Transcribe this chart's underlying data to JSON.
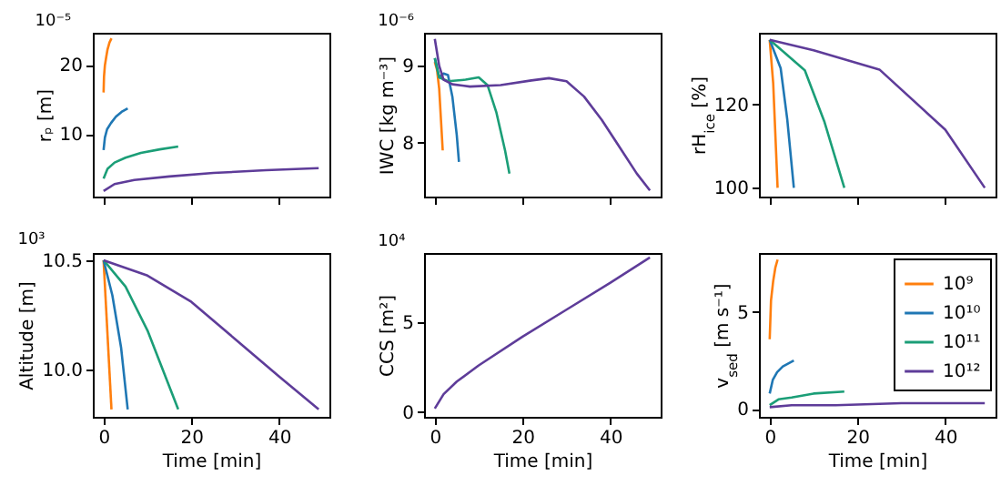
{
  "chart_data": [
    {
      "type": "line",
      "title": "10⁻⁵",
      "ylabel": "rₚ [m]",
      "xlim": [
        -2.45,
        51.45
      ],
      "xticks": [
        0,
        20,
        40
      ],
      "ylim": [
        1,
        24.6
      ],
      "yticks": [
        10,
        20
      ],
      "tick_labels": "y",
      "series": [
        {
          "color": "#ff7f0e",
          "x": [
            0,
            0.1,
            0.3,
            0.6,
            0.9,
            1.35,
            1.8
          ],
          "values": [
            16,
            18.3,
            19.9,
            21.1,
            22.2,
            23.2,
            23.8
          ]
        },
        {
          "color": "#1f77b4",
          "x": [
            0,
            0.3,
            0.8,
            1.7,
            2.8,
            4.1,
            5.5
          ],
          "values": [
            7.7,
            9.5,
            10.7,
            11.6,
            12.5,
            13.2,
            13.7
          ]
        },
        {
          "color": "#1b9e77",
          "x": [
            0,
            0.9,
            2.5,
            5,
            8.5,
            12.8,
            17
          ],
          "values": [
            3.6,
            5.0,
            5.9,
            6.6,
            7.3,
            7.8,
            8.2
          ]
        },
        {
          "color": "#5e3c99",
          "x": [
            0,
            2.5,
            7,
            15,
            25,
            37,
            49
          ],
          "values": [
            1.8,
            2.8,
            3.4,
            3.9,
            4.4,
            4.8,
            5.1
          ]
        }
      ]
    },
    {
      "type": "line",
      "title": "10⁻⁶",
      "ylabel": "IWC [kg m⁻³]",
      "xlim": [
        -2.45,
        51.45
      ],
      "xticks": [
        0,
        20,
        40
      ],
      "ylim": [
        7.3,
        9.43
      ],
      "yticks": [
        8,
        9
      ],
      "tick_labels": "y",
      "series": [
        {
          "color": "#ff7f0e",
          "x": [
            0,
            0.5,
            1,
            1.4,
            1.8
          ],
          "values": [
            9.05,
            8.95,
            8.7,
            8.3,
            7.9
          ]
        },
        {
          "color": "#1f77b4",
          "x": [
            0,
            1,
            2,
            3,
            4,
            5,
            5.5
          ],
          "values": [
            9.1,
            8.85,
            8.9,
            8.88,
            8.6,
            8.1,
            7.75
          ]
        },
        {
          "color": "#1b9e77",
          "x": [
            0,
            1,
            3,
            7,
            10,
            12,
            14,
            16,
            17
          ],
          "values": [
            9.1,
            8.85,
            8.8,
            8.82,
            8.85,
            8.75,
            8.4,
            7.9,
            7.6
          ]
        },
        {
          "color": "#5e3c99",
          "x": [
            0,
            1,
            2,
            4,
            8,
            15,
            22,
            26,
            30,
            34,
            38,
            42,
            46,
            49
          ],
          "values": [
            9.35,
            9.0,
            8.82,
            8.76,
            8.73,
            8.75,
            8.81,
            8.84,
            8.8,
            8.6,
            8.3,
            7.95,
            7.6,
            7.38
          ]
        }
      ]
    },
    {
      "type": "line",
      "ylabel": "rH$_{ice}$ [%]",
      "xlim": [
        -2.45,
        51.45
      ],
      "xticks": [
        0,
        20,
        40
      ],
      "ylim": [
        97.9,
        137.1
      ],
      "yticks": [
        100,
        120
      ],
      "tick_labels": "y",
      "series": [
        {
          "color": "#ff7f0e",
          "x": [
            0,
            0.8,
            1.8
          ],
          "values": [
            135.4,
            125,
            100
          ]
        },
        {
          "color": "#1f77b4",
          "x": [
            0,
            2.5,
            4,
            5.5
          ],
          "values": [
            135.4,
            128.6,
            116.4,
            100
          ]
        },
        {
          "color": "#1b9e77",
          "x": [
            0,
            8,
            12.5,
            17
          ],
          "values": [
            135.4,
            128.1,
            115.7,
            100
          ]
        },
        {
          "color": "#5e3c99",
          "x": [
            0,
            10,
            25,
            40,
            49
          ],
          "values": [
            135.4,
            132.9,
            128.3,
            113.9,
            100
          ]
        }
      ]
    },
    {
      "type": "line",
      "title": "10³",
      "xlabel": "Time [min]",
      "ylabel": "Altitude [m]",
      "xlim": [
        -2.45,
        51.45
      ],
      "xticks": [
        0,
        20,
        40
      ],
      "ylim": [
        9.786,
        10.533
      ],
      "yticks": [
        {
          "value": 10,
          "label": "10.0"
        },
        10.5
      ],
      "series": [
        {
          "color": "#ff7f0e",
          "x": [
            0,
            1.8
          ],
          "values": [
            10.5,
            9.82
          ]
        },
        {
          "color": "#1f77b4",
          "x": [
            0,
            2,
            4,
            5.5
          ],
          "values": [
            10.5,
            10.34,
            10.1,
            9.82
          ]
        },
        {
          "color": "#1b9e77",
          "x": [
            0,
            5,
            10,
            17
          ],
          "values": [
            10.5,
            10.38,
            10.18,
            9.82
          ]
        },
        {
          "color": "#5e3c99",
          "x": [
            0,
            10,
            20,
            30,
            40,
            49
          ],
          "values": [
            10.5,
            10.43,
            10.31,
            10.14,
            9.97,
            9.82
          ]
        }
      ]
    },
    {
      "type": "line",
      "title": "10⁴",
      "xlabel": "Time [min]",
      "ylabel": "CCS [m²]",
      "xlim": [
        -2.45,
        51.45
      ],
      "xticks": [
        0,
        20,
        40
      ],
      "ylim": [
        -0.26,
        8.85
      ],
      "yticks": [
        0,
        5
      ],
      "series": [
        {
          "color": "#5e3c99",
          "x": [
            0,
            2,
            5,
            10,
            20,
            30,
            40,
            49
          ],
          "values": [
            0.2,
            1.0,
            1.7,
            2.6,
            4.2,
            5.7,
            7.2,
            8.6
          ]
        }
      ]
    },
    {
      "type": "line",
      "xlabel": "Time [min]",
      "ylabel": "v$_{sed}$ [m s⁻¹]",
      "xlim": [
        -2.45,
        51.45
      ],
      "xticks": [
        0,
        20,
        40
      ],
      "ylim": [
        -0.4,
        8.04
      ],
      "yticks": [
        0,
        5
      ],
      "legend": "top right",
      "series": [
        {
          "name": "10⁹",
          "color": "#ff7f0e",
          "x": [
            0,
            0.3,
            0.8,
            1.3,
            1.8
          ],
          "values": [
            3.6,
            5.6,
            6.6,
            7.3,
            7.7
          ]
        },
        {
          "name": "10¹⁰",
          "color": "#1f77b4",
          "x": [
            0,
            0.7,
            1.7,
            3,
            5.5
          ],
          "values": [
            0.8,
            1.5,
            1.9,
            2.2,
            2.5
          ]
        },
        {
          "name": "10¹¹",
          "color": "#1b9e77",
          "x": [
            0,
            2,
            5,
            10,
            17
          ],
          "values": [
            0.2,
            0.5,
            0.6,
            0.8,
            0.9
          ]
        },
        {
          "name": "10¹²",
          "color": "#5e3c99",
          "x": [
            0,
            5,
            15,
            30,
            49
          ],
          "values": [
            0.1,
            0.2,
            0.2,
            0.3,
            0.3
          ]
        }
      ]
    }
  ]
}
